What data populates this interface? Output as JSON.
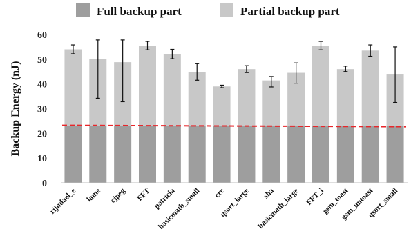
{
  "chart_data": {
    "type": "bar",
    "stacked": true,
    "categories": [
      "rijndael_e",
      "lame",
      "cjpeg",
      "FFT",
      "patricia",
      "basicmath_small",
      "crc",
      "qsort_large",
      "sha",
      "basicmath_large",
      "FFT_i",
      "gsm_toast",
      "gsm_untoast",
      "qsort_small"
    ],
    "series": [
      {
        "name": "Full backup part",
        "color": "#9e9e9e",
        "values": [
          23,
          23,
          23,
          23,
          23,
          23,
          23,
          23,
          23,
          23,
          23,
          23,
          23,
          23
        ]
      },
      {
        "name": "Partial backup part",
        "color": "#c8c8c8",
        "values": [
          31,
          27,
          25.8,
          32.5,
          29,
          21.7,
          16,
          23,
          18.4,
          21.5,
          32.5,
          23,
          30.5,
          20.8
        ]
      }
    ],
    "totals": [
      54,
      50,
      48.8,
      55.5,
      52,
      44.7,
      39,
      46,
      41.4,
      44.5,
      55.5,
      46,
      53.5,
      43.8
    ],
    "error_bars": [
      [
        52.2,
        55.8
      ],
      [
        34.2,
        57.8
      ],
      [
        32.8,
        57.8
      ],
      [
        53.8,
        57.2
      ],
      [
        50.2,
        54.0
      ],
      [
        41.5,
        48.2
      ],
      [
        38.5,
        39.5
      ],
      [
        44.6,
        47.4
      ],
      [
        38.8,
        43.0
      ],
      [
        40.3,
        48.5
      ],
      [
        53.8,
        57.2
      ],
      [
        45.0,
        47.2
      ],
      [
        51.2,
        55.8
      ],
      [
        32.5,
        55.0
      ]
    ],
    "reference_line": {
      "value": 23,
      "color": "#e8262a",
      "style": "dashed"
    },
    "ylabel": "Backup Energy (nJ)",
    "xlabel": "",
    "ylim": [
      0,
      60
    ],
    "yticks": [
      0,
      10,
      20,
      30,
      40,
      50,
      60
    ],
    "legend": "top",
    "grid": false
  }
}
